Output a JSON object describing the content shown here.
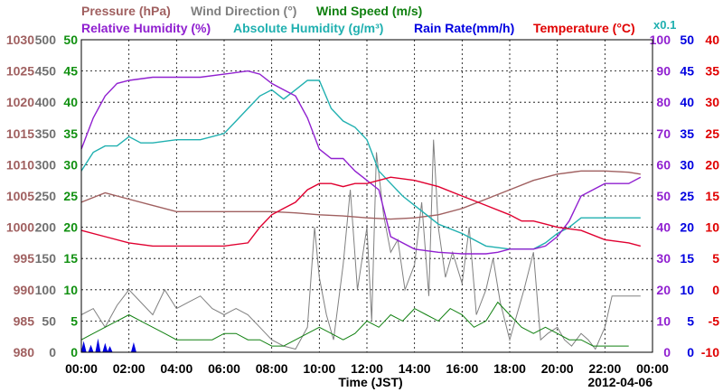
{
  "chart_data": {
    "type": "line",
    "titles": {
      "pressure": "Pressure (hPa)",
      "wind_direction": "Wind Direction (°)",
      "wind_speed": "Wind Speed (m/s)",
      "relative_humidity": "Relative Humidity (%)",
      "absolute_humidity": "Absolute Humidity (g/m³)",
      "rain_rate": "Rain Rate(mm/h)",
      "temperature": "Temperature (°C)",
      "rain_multiplier": "x0.1"
    },
    "xlabel": "Time (JST)",
    "date": "2012-04-06",
    "x_ticks": [
      "00:00",
      "02:00",
      "04:00",
      "06:00",
      "08:00",
      "10:00",
      "12:00",
      "14:00",
      "16:00",
      "18:00",
      "20:00",
      "22:00",
      "00:00"
    ],
    "xlim": [
      0,
      24
    ],
    "grid": true,
    "axes": {
      "pressure": {
        "color": "#a06060",
        "min": 980,
        "max": 1030,
        "ticks": [
          "1030",
          "1025",
          "1020",
          "1015",
          "1010",
          "1005",
          "1000",
          "995",
          "990",
          "985",
          "980"
        ]
      },
      "wind_direction": {
        "color": "#707070",
        "min": 0,
        "max": 500,
        "ticks": [
          "500",
          "450",
          "400",
          "350",
          "300",
          "250",
          "200",
          "150",
          "100",
          "50",
          "0"
        ]
      },
      "wind_speed": {
        "color": "#109010",
        "min": 0,
        "max": 50,
        "ticks": [
          "50",
          "45",
          "40",
          "35",
          "30",
          "25",
          "20",
          "15",
          "10",
          "5",
          "0"
        ]
      },
      "relative_humidity": {
        "color": "#9020d0",
        "min": 0,
        "max": 100,
        "ticks": [
          "100",
          "90",
          "80",
          "70",
          "60",
          "50",
          "40",
          "30",
          "20",
          "10",
          "0"
        ]
      },
      "rain_rate": {
        "color": "#0000e0",
        "min": 0,
        "max": 50,
        "ticks": [
          "50",
          "45",
          "40",
          "35",
          "30",
          "25",
          "20",
          "15",
          "10",
          "5",
          "0"
        ]
      },
      "temperature": {
        "color": "#e00000",
        "min": -10,
        "max": 40,
        "ticks": [
          "40",
          "35",
          "30",
          "25",
          "20",
          "15",
          "10",
          "5",
          "0",
          "-5",
          "-10"
        ]
      }
    },
    "colors": {
      "pressure": "#a06060",
      "wind_direction": "#808080",
      "wind_speed": "#108010",
      "relative_humidity": "#9020d0",
      "absolute_humidity": "#20b0b0",
      "rain_rate": "#0000e0",
      "temperature": "#e00030"
    },
    "series": [
      {
        "name": "Pressure (hPa)",
        "key": "pressure",
        "axis": "pressure",
        "x": [
          0,
          1,
          2,
          3,
          4,
          5,
          6,
          7,
          8,
          9,
          10,
          11,
          12,
          13,
          14,
          15,
          16,
          17,
          18,
          19,
          20,
          21,
          22,
          23,
          23.5
        ],
        "y": [
          1004,
          1005.5,
          1004.5,
          1003.5,
          1002.5,
          1002.5,
          1002.5,
          1002.5,
          1002.5,
          1002.3,
          1002,
          1001.8,
          1001.5,
          1001.3,
          1001.5,
          1002,
          1003,
          1004.5,
          1006,
          1007.5,
          1008.5,
          1009,
          1009,
          1008.8,
          1008.5
        ]
      },
      {
        "name": "Relative Humidity (%)",
        "key": "relative_humidity",
        "axis": "relative_humidity",
        "x": [
          0,
          0.5,
          1,
          1.5,
          2,
          3,
          4,
          5,
          6,
          7,
          7.5,
          8,
          8.5,
          9,
          9.5,
          10,
          10.5,
          11,
          11.5,
          12,
          12.5,
          13,
          14,
          15,
          16,
          17,
          17.5,
          18,
          18.5,
          19,
          19.5,
          20,
          20.5,
          21,
          22,
          23,
          23.5
        ],
        "y": [
          65,
          75,
          82,
          86,
          87,
          88,
          88,
          88,
          89,
          90,
          89,
          86,
          84,
          82,
          75,
          65,
          62,
          62,
          58,
          55,
          52,
          37,
          33,
          32,
          31.5,
          31.5,
          32,
          33,
          33,
          33,
          34,
          37,
          42,
          50,
          54,
          54,
          56
        ]
      },
      {
        "name": "Absolute Humidity (g/m³)",
        "key": "absolute_humidity",
        "axis": "wind_speed",
        "x": [
          0,
          0.5,
          1,
          1.5,
          2,
          2.5,
          3,
          4,
          5,
          6,
          6.5,
          7,
          7.5,
          8,
          8.5,
          9,
          9.5,
          10,
          10.5,
          11,
          11.5,
          12,
          12.5,
          13,
          13.5,
          14,
          15,
          16,
          17,
          18,
          18.5,
          19,
          19.5,
          20,
          20.5,
          21,
          22,
          23,
          23.5
        ],
        "y": [
          29,
          32,
          33,
          33,
          34.5,
          33.5,
          33.5,
          34,
          34,
          35,
          37,
          39,
          41,
          42,
          40.5,
          42,
          43.5,
          43.5,
          39,
          37,
          36,
          34,
          29,
          27,
          25,
          23.5,
          20.5,
          19,
          17,
          16.5,
          16.5,
          16.5,
          17.5,
          19,
          20,
          21.5,
          21.5,
          21.5,
          21.5
        ]
      },
      {
        "name": "Temperature (°C)",
        "key": "temperature",
        "axis": "temperature",
        "x": [
          0,
          1,
          2,
          3,
          4,
          5,
          6,
          7,
          7.5,
          8,
          8.5,
          9,
          9.5,
          10,
          10.5,
          11,
          11.5,
          12,
          12.5,
          13,
          14,
          15,
          16,
          17,
          18,
          18.5,
          19,
          19.5,
          20,
          21,
          22,
          23,
          23.5
        ],
        "y": [
          9.5,
          8.5,
          7.5,
          7,
          7,
          7,
          7,
          7.5,
          10,
          12,
          13,
          14,
          16,
          17,
          17,
          16.5,
          17,
          17,
          17.5,
          18,
          17.5,
          16.5,
          15,
          13.5,
          12,
          11,
          11,
          10.5,
          10,
          9.5,
          8,
          7.5,
          7
        ]
      },
      {
        "name": "Wind Direction (°)",
        "key": "wind_direction",
        "axis": "wind_direction",
        "x": [
          0,
          0.5,
          1,
          1.5,
          2,
          2.5,
          3,
          3.5,
          4,
          4.5,
          5,
          5.5,
          6,
          6.5,
          7,
          7.5,
          8,
          8.5,
          9,
          9.5,
          9.8,
          10,
          10.3,
          10.6,
          11,
          11.3,
          11.6,
          12,
          12.2,
          12.4,
          12.7,
          13,
          13.3,
          13.6,
          14,
          14.3,
          14.6,
          14.8,
          15,
          15.3,
          15.6,
          16,
          16.3,
          16.6,
          17,
          17.3,
          17.6,
          18,
          18.3,
          18.6,
          19,
          19.3,
          19.6,
          20,
          20.3,
          20.6,
          21,
          21.3,
          21.6,
          22,
          22.3,
          22.6,
          23,
          23.5
        ],
        "y": [
          60,
          70,
          40,
          75,
          100,
          80,
          60,
          100,
          70,
          80,
          90,
          70,
          60,
          70,
          60,
          40,
          20,
          10,
          5,
          40,
          200,
          120,
          60,
          20,
          140,
          260,
          100,
          200,
          50,
          320,
          220,
          160,
          180,
          100,
          140,
          240,
          90,
          340,
          200,
          120,
          160,
          110,
          200,
          60,
          100,
          150,
          80,
          20,
          60,
          100,
          160,
          20,
          30,
          40,
          20,
          10,
          30,
          20,
          5,
          40,
          90,
          90,
          90,
          90
        ]
      },
      {
        "name": "Wind Speed (m/s)",
        "key": "wind_speed",
        "axis": "wind_speed",
        "x": [
          0,
          0.5,
          1,
          1.5,
          2,
          2.5,
          3,
          3.5,
          4,
          4.5,
          5,
          5.5,
          6,
          6.5,
          7,
          7.5,
          8,
          8.5,
          9,
          9.5,
          10,
          10.5,
          11,
          11.5,
          12,
          12.5,
          13,
          13.5,
          14,
          14.5,
          15,
          15.5,
          16,
          16.5,
          17,
          17.5,
          18,
          18.5,
          19,
          19.5,
          20,
          20.5,
          21,
          21.5,
          22,
          22.5,
          23
        ],
        "y": [
          2,
          3,
          4,
          5,
          6,
          5,
          4,
          3,
          2,
          2,
          2,
          2,
          3,
          3,
          2,
          2,
          1,
          1,
          2,
          3,
          4,
          3,
          2,
          3,
          5,
          4,
          6,
          5,
          7,
          6,
          5,
          7,
          6,
          4,
          5,
          8,
          6,
          4,
          3,
          4,
          3,
          2,
          2,
          1,
          1,
          1,
          1
        ]
      },
      {
        "name": "Rain Rate(mm/h)",
        "key": "rain_rate",
        "axis": "rain_rate",
        "x": [
          0.1,
          0.4,
          0.7,
          1.0,
          1.2,
          2.2
        ],
        "y": [
          1.8,
          1.2,
          2.2,
          1.5,
          1.0,
          1.6
        ]
      }
    ]
  }
}
